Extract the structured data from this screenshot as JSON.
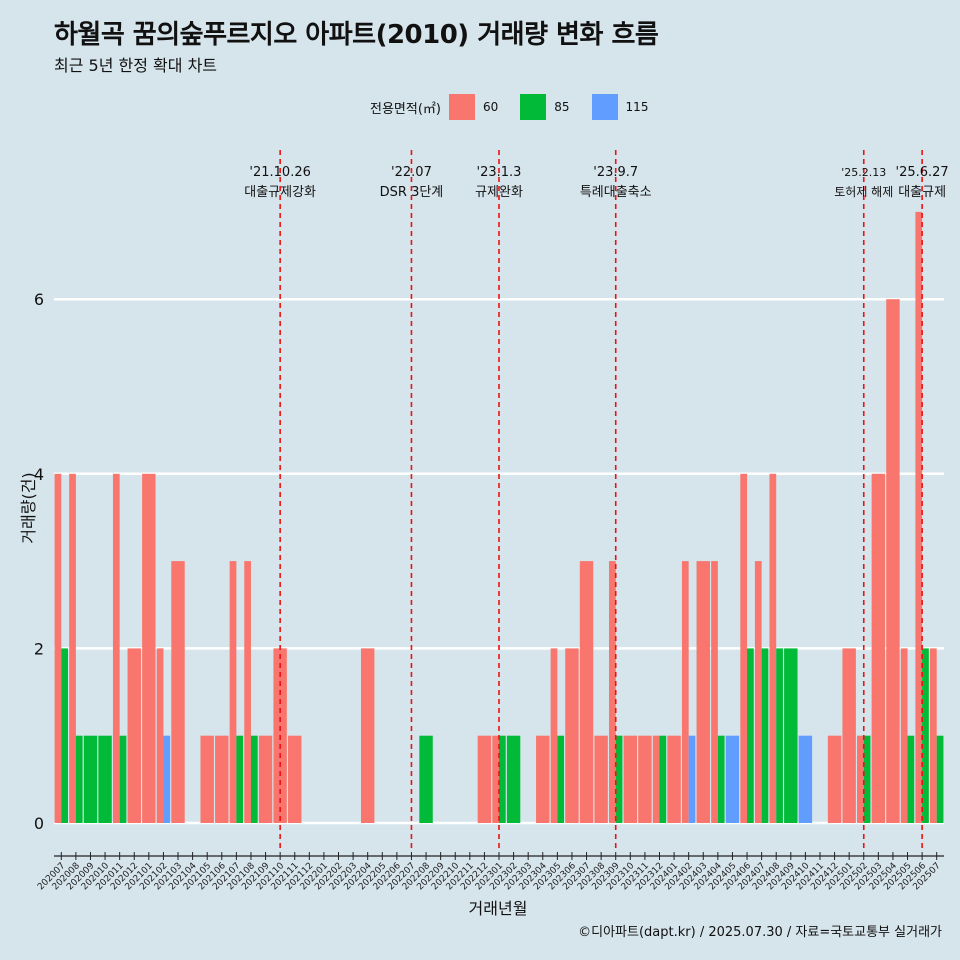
{
  "title": "하월곡 꿈의숲푸르지오 아파트(2010) 거래량 변화 흐름",
  "subtitle": "최근 5년 한정 확대 차트",
  "footer": "©디아파트(dapt.kr) / 2025.07.30 / 자료=국토교통부 실거래가",
  "colors": {
    "background": "#d6e4ec",
    "s60": "#f8766d",
    "s85": "#00ba38",
    "s115": "#619cff",
    "event_line": "#ee1111"
  },
  "chart_data": {
    "type": "bar",
    "title": "하월곡 꿈의숲푸르지오 아파트(2010) 거래량 변화 흐름",
    "subtitle": "최근 5년 한정 확대 차트",
    "xlabel": "거래년월",
    "ylabel": "거래량(건)",
    "ylim": [
      0,
      7
    ],
    "yticks": [
      0,
      2,
      4,
      6
    ],
    "grid": true,
    "legend": {
      "title": "전용면적(㎡)",
      "position": "top",
      "entries": [
        "60",
        "85",
        "115"
      ]
    },
    "categories": [
      "202007",
      "202008",
      "202009",
      "202010",
      "202011",
      "202012",
      "202101",
      "202102",
      "202103",
      "202104",
      "202105",
      "202106",
      "202107",
      "202108",
      "202109",
      "202110",
      "202111",
      "202112",
      "202201",
      "202202",
      "202203",
      "202204",
      "202205",
      "202206",
      "202207",
      "202208",
      "202209",
      "202210",
      "202211",
      "202212",
      "202301",
      "202302",
      "202303",
      "202304",
      "202305",
      "202306",
      "202307",
      "202308",
      "202309",
      "202310",
      "202311",
      "202312",
      "202401",
      "202402",
      "202403",
      "202404",
      "202405",
      "202406",
      "202407",
      "202408",
      "202409",
      "202410",
      "202411",
      "202412",
      "202501",
      "202502",
      "202503",
      "202504",
      "202505",
      "202506",
      "202507"
    ],
    "series": [
      {
        "name": "60",
        "values": [
          4,
          4,
          0,
          0,
          4,
          2,
          4,
          2,
          3,
          0,
          1,
          1,
          3,
          3,
          1,
          2,
          1,
          0,
          0,
          0,
          0,
          2,
          0,
          0,
          0,
          0,
          0,
          0,
          0,
          1,
          1,
          0,
          0,
          1,
          2,
          2,
          3,
          1,
          3,
          1,
          1,
          1,
          1,
          3,
          3,
          3,
          0,
          4,
          3,
          4,
          0,
          0,
          0,
          1,
          2,
          1,
          4,
          6,
          2,
          7,
          2
        ]
      },
      {
        "name": "85",
        "values": [
          2,
          1,
          1,
          1,
          1,
          0,
          0,
          0,
          0,
          0,
          0,
          0,
          1,
          1,
          0,
          0,
          0,
          0,
          0,
          0,
          0,
          0,
          0,
          0,
          0,
          1,
          0,
          0,
          0,
          0,
          1,
          1,
          0,
          0,
          1,
          0,
          0,
          0,
          1,
          0,
          0,
          1,
          0,
          0,
          0,
          1,
          0,
          2,
          2,
          2,
          2,
          0,
          0,
          0,
          0,
          1,
          0,
          0,
          1,
          2,
          1
        ]
      },
      {
        "name": "115",
        "values": [
          0,
          0,
          0,
          0,
          0,
          0,
          0,
          1,
          0,
          0,
          0,
          0,
          0,
          0,
          0,
          0,
          0,
          0,
          0,
          0,
          0,
          0,
          0,
          0,
          0,
          0,
          0,
          0,
          0,
          0,
          0,
          0,
          0,
          0,
          0,
          0,
          0,
          0,
          0,
          0,
          0,
          0,
          0,
          1,
          0,
          0,
          1,
          0,
          0,
          0,
          0,
          1,
          0,
          0,
          0,
          0,
          0,
          0,
          0,
          0,
          0
        ]
      }
    ],
    "events": [
      {
        "date": "'21.10.26",
        "label": "대출규제강화",
        "category": "202110"
      },
      {
        "date": "'22.07",
        "label": "DSR 3단계",
        "category": "202207"
      },
      {
        "date": "'23.1.3",
        "label": "규제완화",
        "category": "202301"
      },
      {
        "date": "'23.9.7",
        "label": "특례대출축소",
        "category": "202309"
      },
      {
        "date": "'25.2.13",
        "label": "토허제 해제",
        "category": "202502"
      },
      {
        "date": "'25.6.27",
        "label": "대출규제",
        "category": "202506"
      }
    ]
  }
}
